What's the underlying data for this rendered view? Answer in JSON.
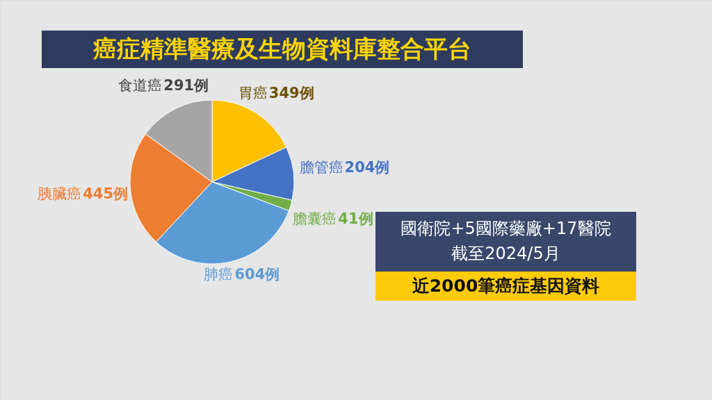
{
  "chart_data": {
    "type": "pie",
    "title": "癌症精準醫療及生物資料庫整合平台",
    "categories": [
      "胃癌",
      "膽管癌",
      "膽囊癌",
      "肺癌",
      "胰臟癌",
      "食道癌"
    ],
    "values": [
      349,
      204,
      41,
      604,
      445,
      291
    ],
    "colors": [
      "#ffc000",
      "#4472c4",
      "#70ad47",
      "#5b9bd5",
      "#ed7d31",
      "#a5a5a5"
    ],
    "value_labels": [
      "349例",
      "204例",
      "41例",
      "604例",
      "445例",
      "291例"
    ],
    "annotations": [
      "國衛院+5國際藥廠+17醫院",
      "截至2024/5月",
      "近2000筆癌症基因資料"
    ]
  }
}
